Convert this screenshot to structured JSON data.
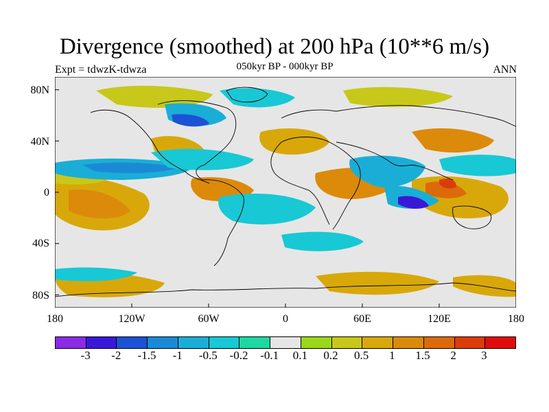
{
  "header": {
    "title": "Divergence (smoothed) at 200 hPa (10**6 m/s)",
    "subtitle": "050kyr BP - 000kyr BP",
    "experiment": "Expt = tdwzK-tdwza",
    "period": "ANN"
  },
  "map": {
    "type": "filled-contour world map",
    "projection": "cylindrical equidistant",
    "lon_range": [
      -180,
      180
    ],
    "lat_range": [
      -90,
      90
    ],
    "lat_ticks": [
      "80N",
      "40N",
      "0",
      "40S",
      "80S"
    ],
    "lon_ticks": [
      "180",
      "120W",
      "60W",
      "0",
      "60E",
      "120E",
      "180"
    ],
    "coastlines": true
  },
  "colorbar": {
    "colors": [
      "#8a2be6",
      "#3a18d8",
      "#1c52d6",
      "#1b8ad6",
      "#1aaed6",
      "#18c8d4",
      "#1ed8a0",
      "#e6e6e6",
      "#9ad61a",
      "#c8c81a",
      "#d8a80a",
      "#dc8a0a",
      "#dc6a0a",
      "#dc3c0a",
      "#e00c0c"
    ],
    "labels": [
      "-3",
      "-2",
      "-1.5",
      "-1",
      "-0.5",
      "-0.2",
      "-0.1",
      "0.1",
      "0.2",
      "0.5",
      "1",
      "1.5",
      "2",
      "3"
    ]
  }
}
